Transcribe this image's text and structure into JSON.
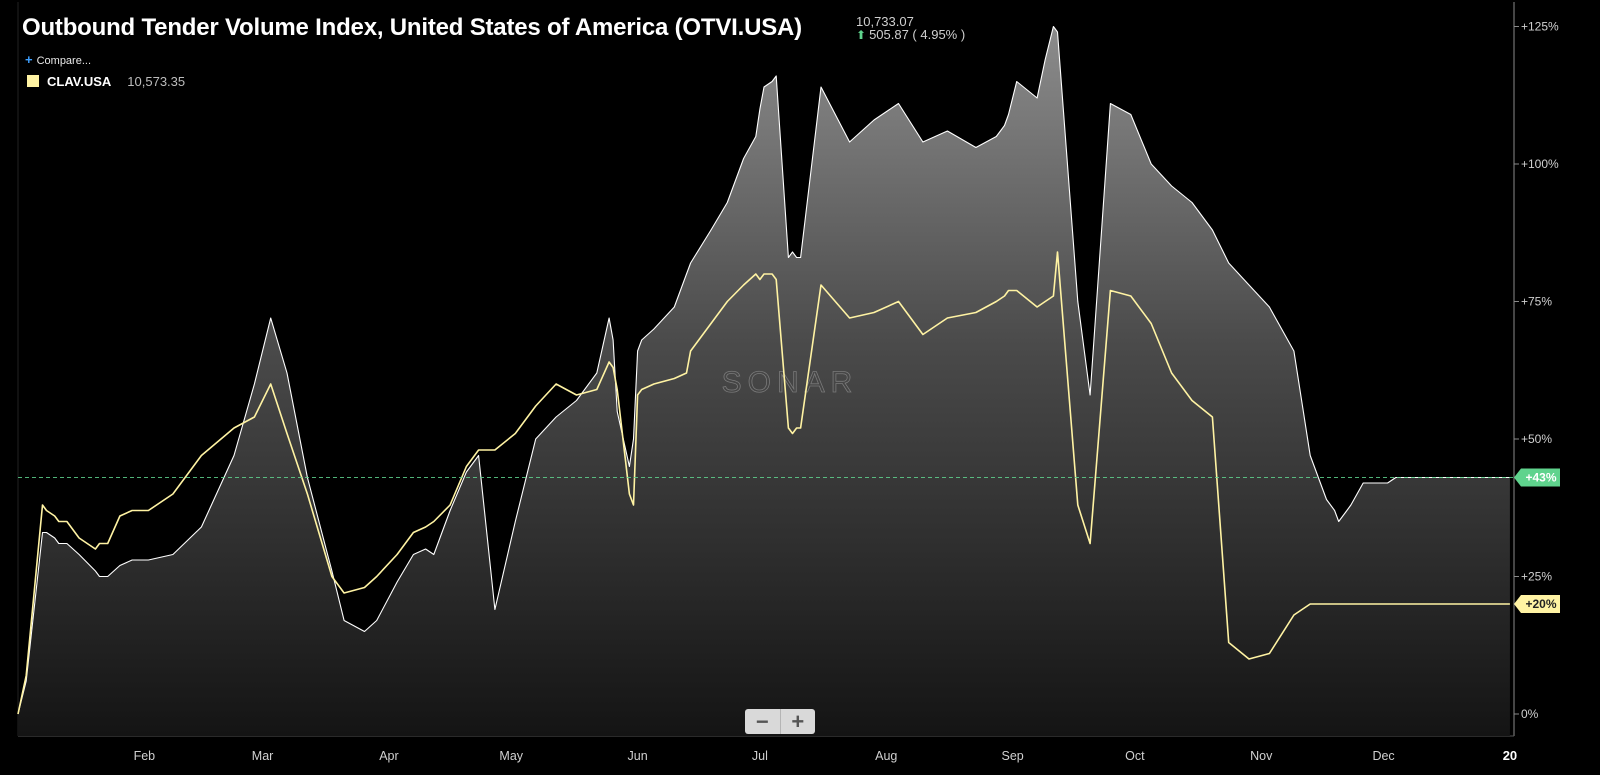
{
  "header": {
    "title": "Outbound Tender Volume Index, United States of America (OTVI.USA)",
    "last_value": "10,733.07",
    "change": "505.87 ( 4.95% )",
    "change_direction_icon": "up-arrow-icon",
    "change_color": "#5fd38d"
  },
  "compare": {
    "label": "Compare...",
    "icon": "plus-icon"
  },
  "legend": {
    "symbol": "CLAV.USA",
    "value": "10,573.35",
    "color": "#fff3a3"
  },
  "watermark": "SONAR",
  "zoom": {
    "out_label": "−",
    "in_label": "+"
  },
  "chart_data": {
    "type": "area",
    "ylim": [
      -4,
      128
    ],
    "y_ticks": [
      0,
      25,
      50,
      75,
      100,
      125
    ],
    "y_tick_labels": [
      "0%",
      "+25%",
      "+50%",
      "+75%",
      "+100%",
      "+125%"
    ],
    "x_tick_labels": [
      "Feb",
      "Mar",
      "Apr",
      "May",
      "Jun",
      "Jul",
      "Aug",
      "Sep",
      "Oct",
      "Nov",
      "Dec",
      "20"
    ],
    "x_tick_days": [
      31,
      60,
      91,
      121,
      152,
      182,
      213,
      244,
      274,
      305,
      335,
      366
    ],
    "xlim": [
      0,
      367
    ],
    "reference_line": {
      "value": 43,
      "label": "+43%",
      "color": "#5fd38d"
    },
    "end_label": {
      "value": 20,
      "label": "+20%",
      "color": "#fff3a3"
    },
    "series": [
      {
        "name": "OTVI.USA",
        "color": "#ffffff",
        "fill": "gradient-gray",
        "days": [
          0,
          2,
          6,
          7,
          9,
          10,
          12,
          15,
          19,
          20,
          22,
          25,
          28,
          32,
          38,
          45,
          53,
          58,
          62,
          66,
          71,
          77,
          80,
          85,
          88,
          93,
          97,
          100,
          102,
          106,
          110,
          113,
          117,
          122,
          127,
          132,
          137,
          142,
          145,
          146,
          147,
          150,
          151,
          152,
          153,
          156,
          161,
          164,
          165,
          170,
          174,
          178,
          181,
          182,
          183,
          185,
          186,
          189,
          190,
          191,
          192,
          197,
          204,
          210,
          216,
          222,
          228,
          235,
          240,
          242,
          243,
          245,
          250,
          252,
          254,
          255,
          260,
          263,
          268,
          273,
          278,
          283,
          288,
          293,
          297,
          302,
          307,
          313,
          317,
          321,
          323,
          324,
          326,
          327,
          330,
          336,
          338,
          340,
          343,
          347,
          351,
          355,
          358,
          360,
          361,
          362,
          363,
          365,
          366
        ],
        "values": [
          0,
          6,
          33,
          33,
          32,
          31,
          31,
          29,
          26,
          25,
          25,
          27,
          28,
          28,
          29,
          34,
          47,
          60,
          72,
          62,
          43,
          26,
          17,
          15,
          17,
          24,
          29,
          30,
          29,
          37,
          44,
          47,
          19,
          35,
          50,
          54,
          57,
          62,
          72,
          68,
          55,
          45,
          50,
          66,
          68,
          70,
          74,
          80,
          82,
          88,
          93,
          101,
          105,
          110,
          114,
          115,
          116,
          83,
          84,
          83,
          83,
          114,
          104,
          108,
          111,
          104,
          106,
          103,
          105,
          107,
          109,
          115,
          112,
          119,
          125,
          124,
          75,
          58,
          111,
          109,
          100,
          96,
          93,
          88,
          82,
          78,
          74,
          66,
          47,
          39,
          37,
          35,
          37,
          38,
          42,
          42,
          43,
          43,
          43,
          43,
          43,
          43,
          43,
          43,
          43,
          43,
          43,
          43,
          43
        ]
      },
      {
        "name": "CLAV.USA",
        "color": "#fff3a3",
        "days": [
          0,
          2,
          6,
          7,
          9,
          10,
          12,
          15,
          19,
          20,
          22,
          25,
          28,
          32,
          38,
          45,
          53,
          58,
          62,
          66,
          71,
          77,
          80,
          85,
          88,
          93,
          97,
          100,
          102,
          106,
          110,
          113,
          117,
          122,
          127,
          132,
          137,
          142,
          145,
          146,
          147,
          150,
          151,
          152,
          153,
          156,
          161,
          164,
          165,
          170,
          174,
          178,
          181,
          182,
          183,
          185,
          186,
          189,
          190,
          191,
          192,
          197,
          204,
          210,
          216,
          222,
          228,
          235,
          240,
          242,
          243,
          245,
          250,
          252,
          254,
          255,
          260,
          263,
          268,
          273,
          278,
          283,
          288,
          293,
          297,
          302,
          307,
          313,
          317,
          321,
          323,
          324,
          326,
          327,
          330,
          336,
          338,
          340,
          343,
          347,
          351,
          355,
          358,
          360,
          361,
          362,
          363,
          365,
          366
        ],
        "values": [
          0,
          7,
          38,
          37,
          36,
          35,
          35,
          32,
          30,
          31,
          31,
          36,
          37,
          37,
          40,
          47,
          52,
          54,
          60,
          51,
          40,
          25,
          22,
          23,
          25,
          29,
          33,
          34,
          35,
          38,
          45,
          48,
          48,
          51,
          56,
          60,
          58,
          59,
          64,
          63,
          59,
          40,
          38,
          58,
          59,
          60,
          61,
          62,
          66,
          71,
          75,
          78,
          80,
          79,
          80,
          80,
          79,
          52,
          51,
          52,
          52,
          78,
          72,
          73,
          75,
          69,
          72,
          73,
          75,
          76,
          77,
          77,
          74,
          75,
          76,
          84,
          38,
          31,
          77,
          76,
          71,
          62,
          57,
          54,
          13,
          10,
          11,
          18,
          20,
          20,
          20,
          20,
          20,
          20,
          20,
          20,
          20,
          20,
          20,
          20,
          20,
          20,
          20,
          20,
          20,
          20,
          20,
          20,
          20
        ]
      }
    ]
  }
}
